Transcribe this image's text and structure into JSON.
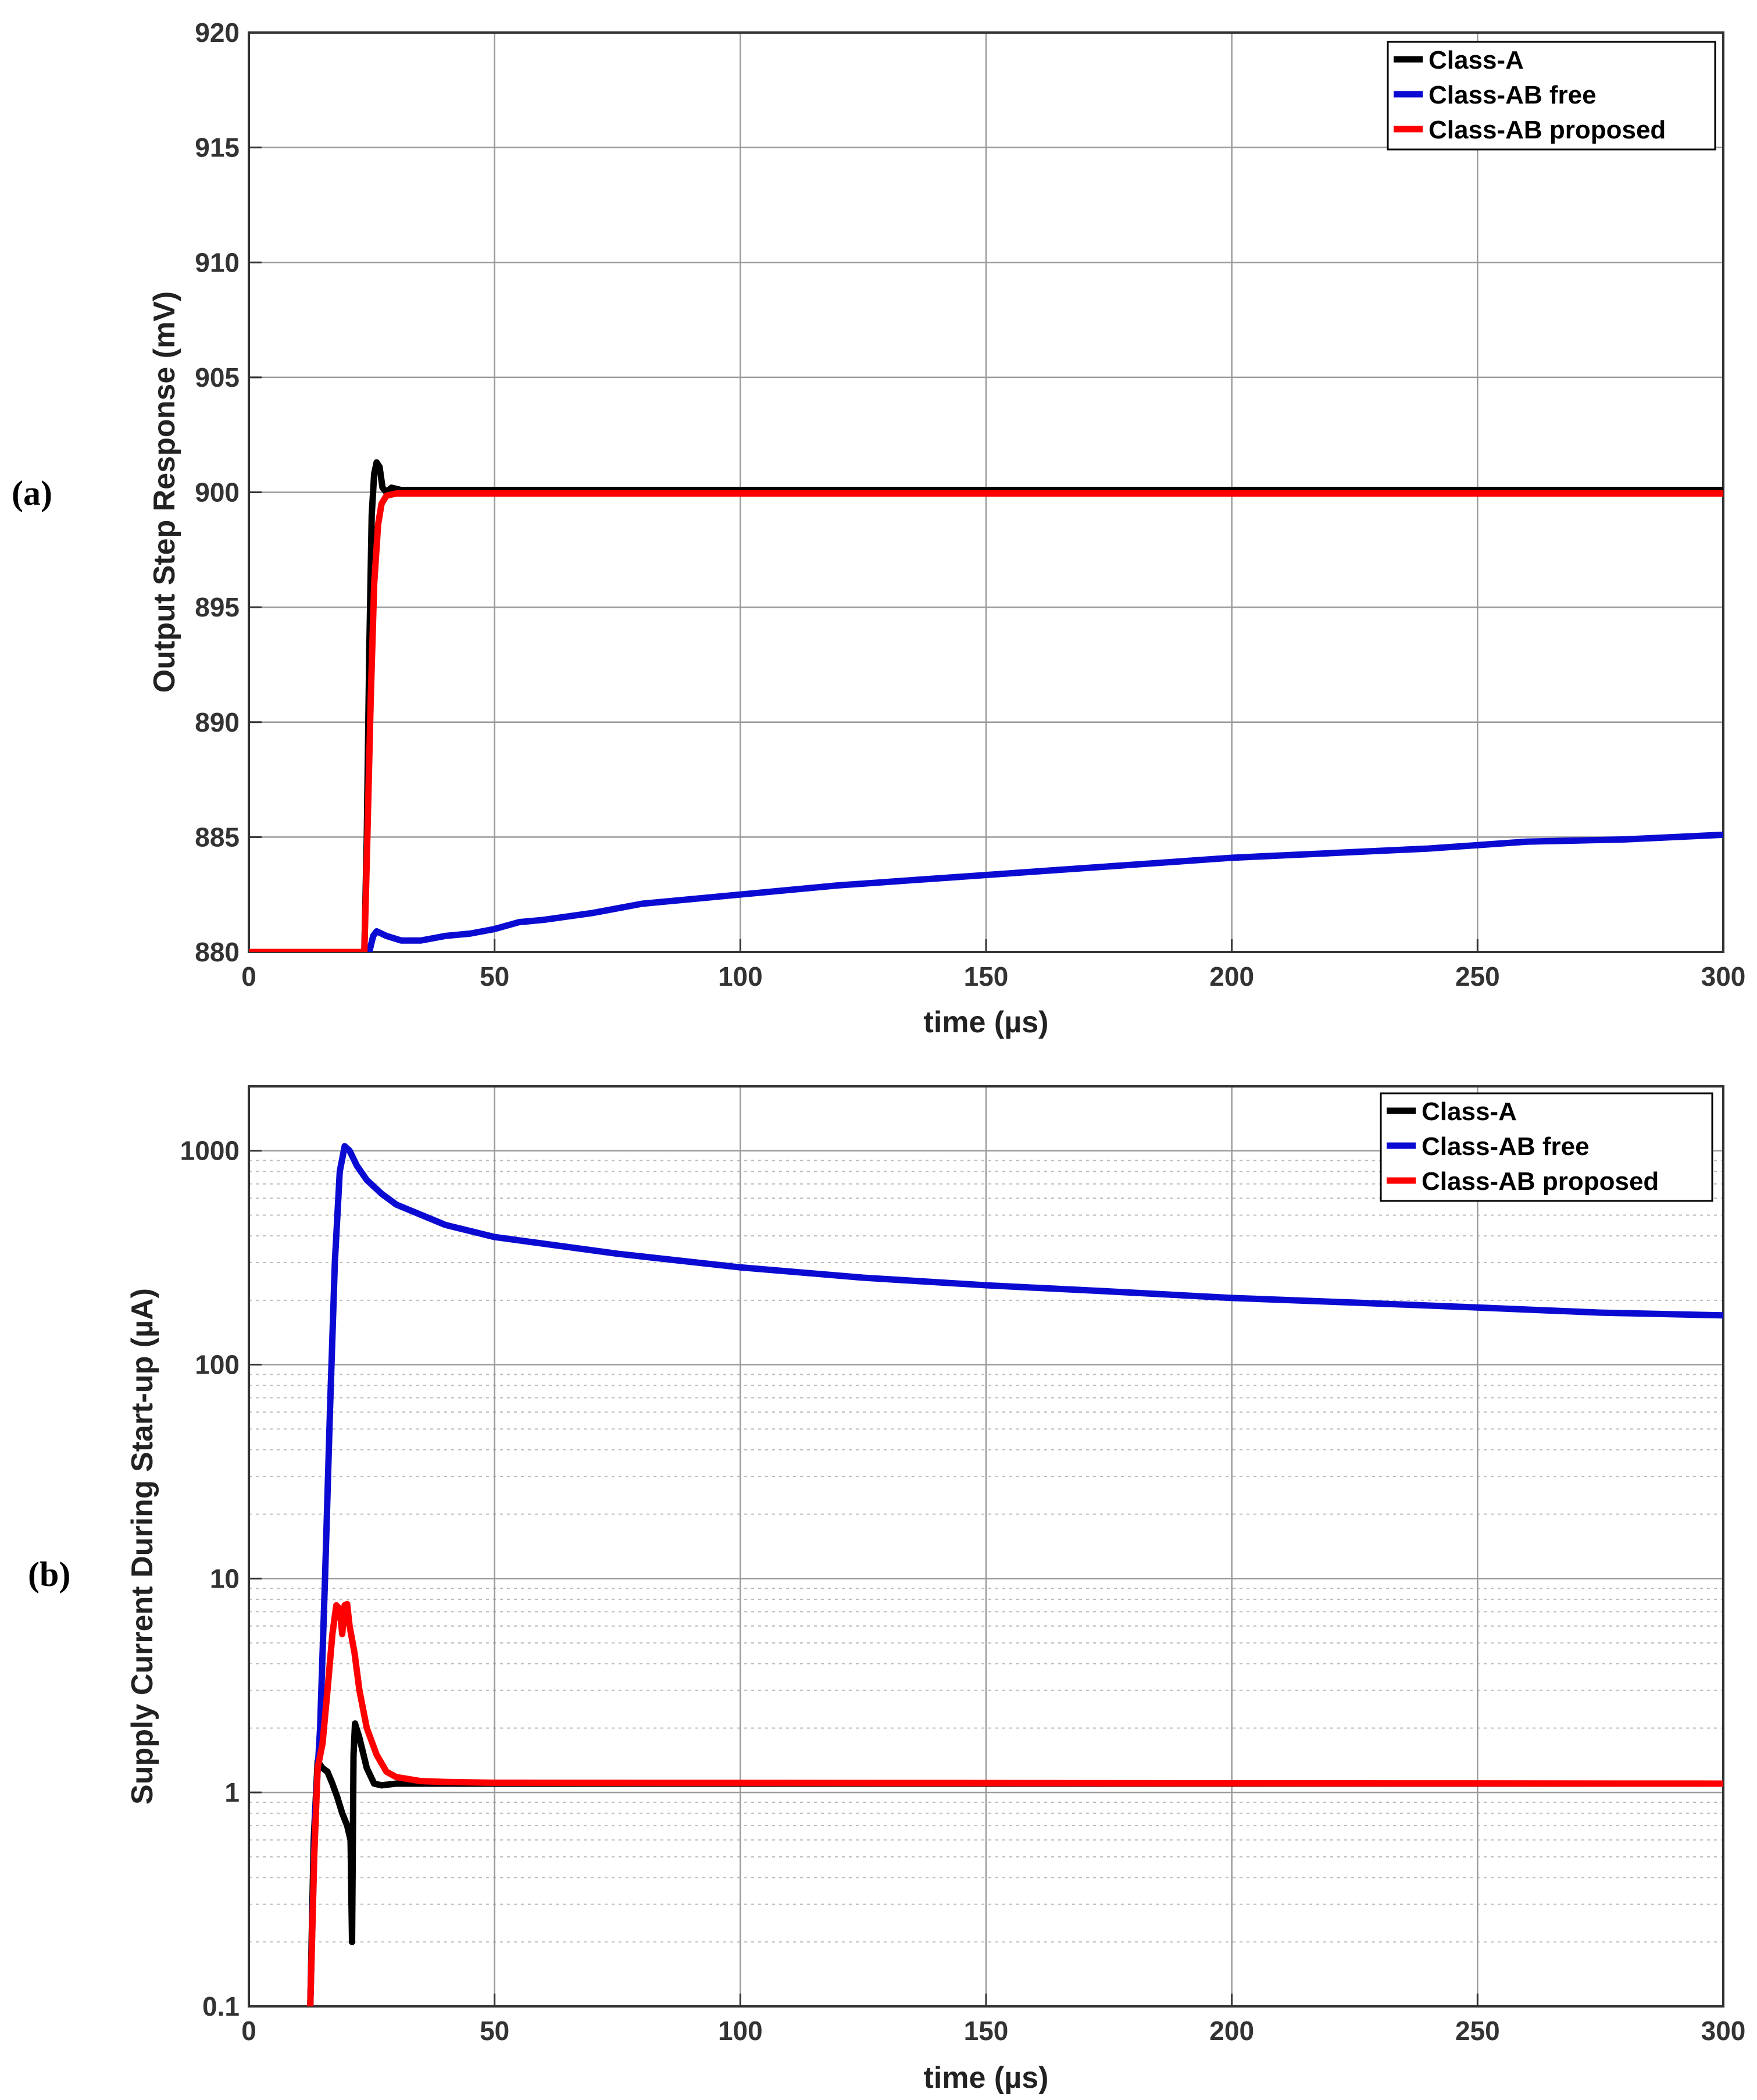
{
  "chart_data": [
    {
      "panel_label": "(a)",
      "type": "line",
      "xlabel": "time (µs)",
      "ylabel": "Output Step Response (mV)",
      "xlim": [
        0,
        300
      ],
      "ylim": [
        880,
        920
      ],
      "x_ticks": [
        0,
        50,
        100,
        150,
        200,
        250,
        300
      ],
      "y_ticks": [
        880,
        885,
        890,
        895,
        900,
        905,
        910,
        915,
        920
      ],
      "y_scale": "linear",
      "grid": true,
      "legend_position": "top-right",
      "series": [
        {
          "name": "Class-A",
          "color": "#000000",
          "points": [
            [
              0,
              880
            ],
            [
              23.5,
              880
            ],
            [
              24,
              885
            ],
            [
              24.5,
              893
            ],
            [
              25,
              899
            ],
            [
              25.5,
              900.8
            ],
            [
              26,
              901.3
            ],
            [
              26.6,
              901.1
            ],
            [
              27.2,
              900.2
            ],
            [
              28,
              900
            ],
            [
              29,
              900.2
            ],
            [
              30,
              900.15
            ],
            [
              31,
              900.1
            ],
            [
              300,
              900.1
            ]
          ]
        },
        {
          "name": "Class-AB free",
          "color": "#0a0ad2",
          "points": [
            [
              0,
              880
            ],
            [
              24.5,
              880
            ],
            [
              25.3,
              880.7
            ],
            [
              26,
              880.9
            ],
            [
              28,
              880.7
            ],
            [
              31,
              880.5
            ],
            [
              35,
              880.5
            ],
            [
              40,
              880.7
            ],
            [
              45,
              880.8
            ],
            [
              50,
              881.0
            ],
            [
              55,
              881.3
            ],
            [
              60,
              881.4
            ],
            [
              70,
              881.7
            ],
            [
              80,
              882.1
            ],
            [
              100,
              882.5
            ],
            [
              120,
              882.9
            ],
            [
              140,
              883.2
            ],
            [
              160,
              883.5
            ],
            [
              180,
              883.8
            ],
            [
              200,
              884.1
            ],
            [
              220,
              884.3
            ],
            [
              240,
              884.5
            ],
            [
              260,
              884.8
            ],
            [
              280,
              884.9
            ],
            [
              300,
              885.1
            ]
          ]
        },
        {
          "name": "Class-AB proposed",
          "color": "#ff0000",
          "points": [
            [
              0,
              880
            ],
            [
              23.5,
              880
            ],
            [
              24,
              884
            ],
            [
              24.8,
              891
            ],
            [
              25.5,
              896
            ],
            [
              26.3,
              898.6
            ],
            [
              27,
              899.5
            ],
            [
              28,
              899.85
            ],
            [
              30,
              899.95
            ],
            [
              300,
              899.95
            ]
          ]
        }
      ]
    },
    {
      "panel_label": "(b)",
      "type": "line",
      "xlabel": "time (µs)",
      "ylabel": "Supply Current During Start-up (µA)",
      "xlim": [
        0,
        300
      ],
      "ylim": [
        0.1,
        2000
      ],
      "x_ticks": [
        0,
        50,
        100,
        150,
        200,
        250,
        300
      ],
      "y_ticks": [
        0.1,
        1,
        10,
        100,
        1000
      ],
      "y_scale": "log",
      "grid": true,
      "legend_position": "top-right",
      "series": [
        {
          "name": "Class-A",
          "color": "#000000",
          "points": [
            [
              12.5,
              0.1
            ],
            [
              13.2,
              0.6
            ],
            [
              14,
              1.4
            ],
            [
              15,
              1.3
            ],
            [
              16,
              1.25
            ],
            [
              17,
              1.1
            ],
            [
              18,
              0.95
            ],
            [
              19,
              0.8
            ],
            [
              20,
              0.7
            ],
            [
              20.7,
              0.6
            ],
            [
              21,
              0.2
            ],
            [
              21.3,
              1.5
            ],
            [
              21.6,
              2.1
            ],
            [
              22.5,
              1.8
            ],
            [
              24,
              1.3
            ],
            [
              25.5,
              1.1
            ],
            [
              27,
              1.08
            ],
            [
              30,
              1.1
            ],
            [
              35,
              1.1
            ],
            [
              40,
              1.1
            ],
            [
              300,
              1.1
            ]
          ]
        },
        {
          "name": "Class-AB free",
          "color": "#0a0ad2",
          "points": [
            [
              12.5,
              0.1
            ],
            [
              13.5,
              0.8
            ],
            [
              14.5,
              2
            ],
            [
              15.5,
              10
            ],
            [
              16.5,
              60
            ],
            [
              17.5,
              300
            ],
            [
              18.5,
              800
            ],
            [
              19.5,
              1050
            ],
            [
              20.5,
              1000
            ],
            [
              22,
              850
            ],
            [
              24,
              730
            ],
            [
              27,
              630
            ],
            [
              30,
              560
            ],
            [
              40,
              450
            ],
            [
              50,
              395
            ],
            [
              75,
              330
            ],
            [
              100,
              285
            ],
            [
              125,
              255
            ],
            [
              150,
              235
            ],
            [
              175,
              220
            ],
            [
              200,
              205
            ],
            [
              225,
              195
            ],
            [
              250,
              185
            ],
            [
              275,
              175
            ],
            [
              300,
              170
            ]
          ]
        },
        {
          "name": "Class-AB proposed",
          "color": "#ff0000",
          "points": [
            [
              12.5,
              0.1
            ],
            [
              13.3,
              0.5
            ],
            [
              14,
              1.3
            ],
            [
              15,
              1.7
            ],
            [
              16,
              3
            ],
            [
              17,
              5.5
            ],
            [
              17.8,
              7.5
            ],
            [
              18.5,
              7.2
            ],
            [
              19,
              5.5
            ],
            [
              19.5,
              7.5
            ],
            [
              20,
              7.6
            ],
            [
              20.5,
              6
            ],
            [
              21.5,
              4.5
            ],
            [
              22.5,
              3
            ],
            [
              24,
              2
            ],
            [
              26,
              1.5
            ],
            [
              28,
              1.25
            ],
            [
              30,
              1.18
            ],
            [
              35,
              1.13
            ],
            [
              40,
              1.12
            ],
            [
              50,
              1.11
            ],
            [
              300,
              1.1
            ]
          ]
        }
      ]
    }
  ],
  "colors": {
    "grid_major": "#9a9a9a",
    "grid_minor": "#bbbbbb",
    "axes": "#333333"
  }
}
